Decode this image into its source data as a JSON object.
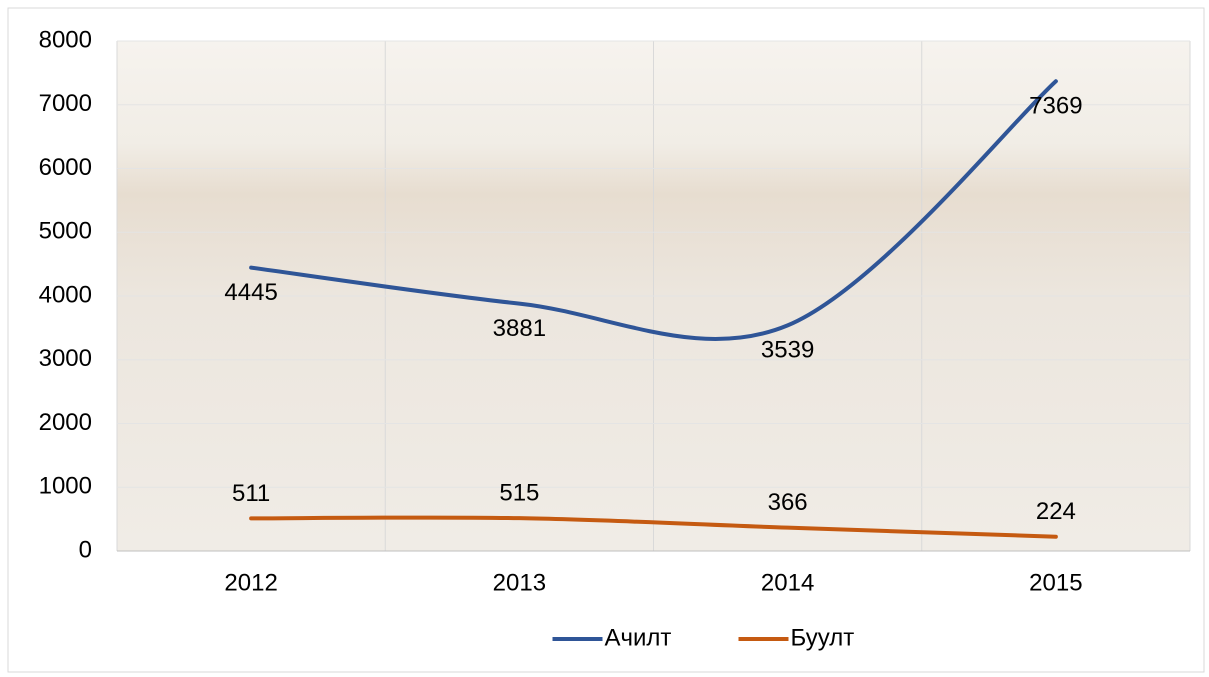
{
  "chart_data": {
    "type": "line",
    "categories": [
      "2012",
      "2013",
      "2014",
      "2015"
    ],
    "series": [
      {
        "name": "Ачилт",
        "color": "#2f5597",
        "values": [
          4445,
          3881,
          3539,
          7369
        ]
      },
      {
        "name": "Буулт",
        "color": "#c55a11",
        "values": [
          511,
          515,
          366,
          224
        ]
      }
    ],
    "ylim": [
      0,
      8000
    ],
    "yticks": [
      0,
      1000,
      2000,
      3000,
      4000,
      5000,
      6000,
      7000,
      8000
    ],
    "grid": true,
    "smooth": true,
    "legend": "bottom"
  }
}
